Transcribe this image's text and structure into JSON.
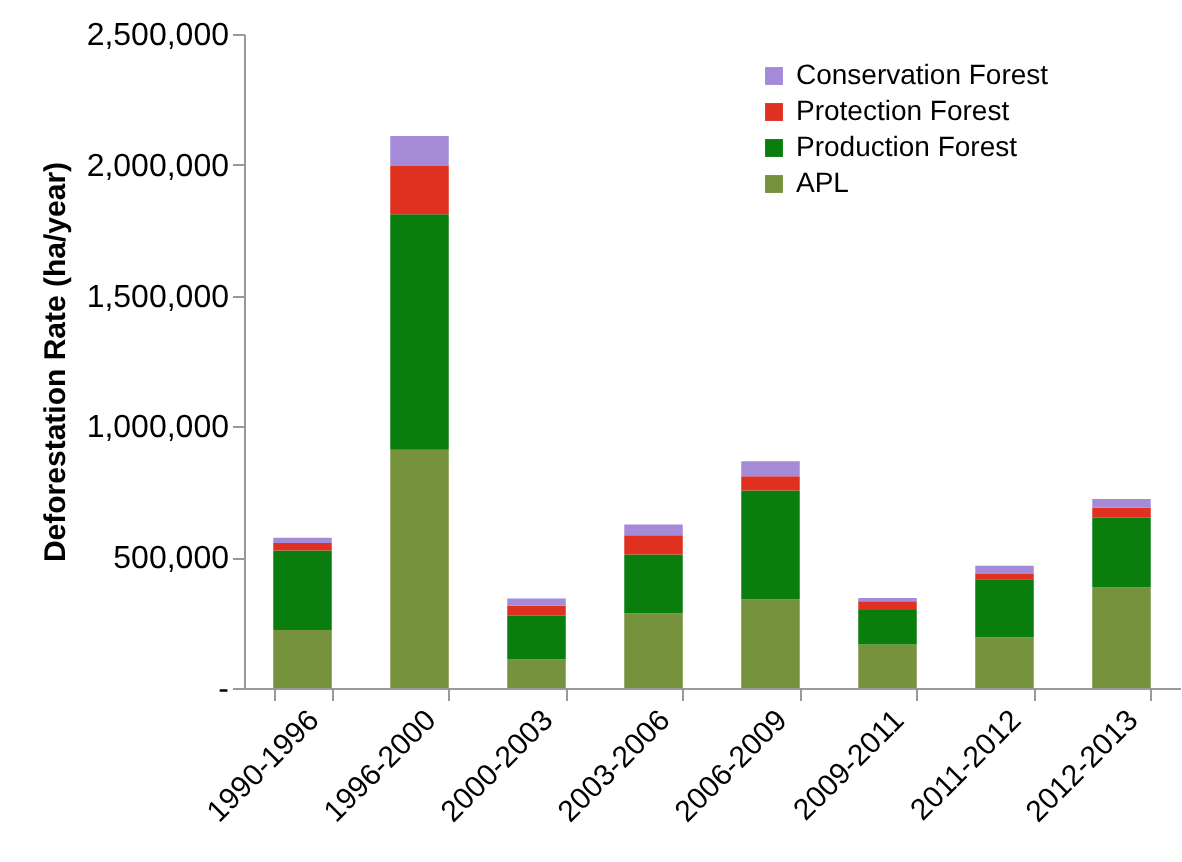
{
  "chart_data": {
    "type": "bar",
    "stacked": true,
    "ylabel": "Deforestation Rate (ha/year)",
    "categories": [
      "1990-1996",
      "1996-2000",
      "2000-2003",
      "2003-2006",
      "2006-2009",
      "2009-2011",
      "2011-2012",
      "2012-2013"
    ],
    "series": [
      {
        "name": "APL",
        "color": "#76923c",
        "values": [
          222000,
          911000,
          110000,
          286000,
          339000,
          166000,
          194000,
          385000
        ]
      },
      {
        "name": "Production Forest",
        "color": "#0a7d0f",
        "values": [
          304000,
          900000,
          166000,
          224000,
          416000,
          132000,
          222000,
          266000
        ]
      },
      {
        "name": "Protection Forest",
        "color": "#e03020",
        "values": [
          28000,
          184000,
          38000,
          74000,
          54000,
          34000,
          20000,
          38000
        ]
      },
      {
        "name": "Conservation Forest",
        "color": "#a58ad8",
        "values": [
          20000,
          115000,
          28000,
          41000,
          58000,
          12000,
          31000,
          33000
        ]
      }
    ],
    "ylim": [
      0,
      2500000
    ],
    "yticks": [
      {
        "value": 0,
        "label": "-"
      },
      {
        "value": 500000,
        "label": "500,000"
      },
      {
        "value": 1000000,
        "label": "1,000,000"
      },
      {
        "value": 1500000,
        "label": "1,500,000"
      },
      {
        "value": 2000000,
        "label": "2,000,000"
      },
      {
        "value": 2500000,
        "label": "2,500,000"
      }
    ],
    "grid": false,
    "legend": "top right"
  }
}
